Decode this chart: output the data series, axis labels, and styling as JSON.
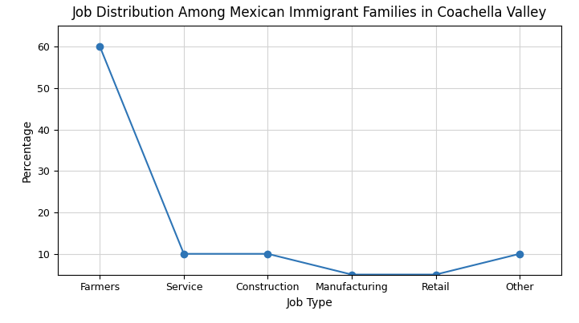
{
  "title": "Job Distribution Among Mexican Immigrant Families in Coachella Valley",
  "xlabel": "Job Type",
  "ylabel": "Percentage",
  "categories": [
    "Farmers",
    "Service",
    "Construction",
    "Manufacturing",
    "Retail",
    "Other"
  ],
  "values": [
    60,
    10,
    10,
    5,
    5,
    10
  ],
  "line_color": "#2e75b6",
  "marker": "o",
  "marker_size": 6,
  "ylim": [
    5,
    65
  ],
  "yticks": [
    10,
    20,
    30,
    40,
    50,
    60
  ],
  "grid": true,
  "title_fontsize": 12,
  "axis_label_fontsize": 10,
  "tick_fontsize": 9,
  "linewidth": 1.5
}
